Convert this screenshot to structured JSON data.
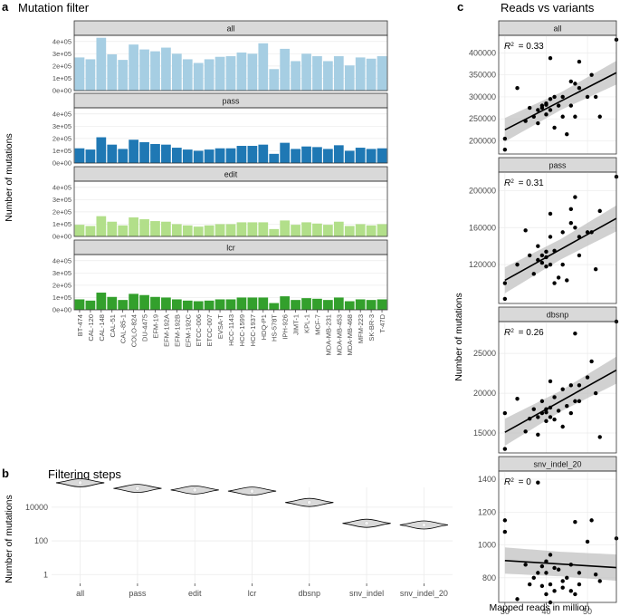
{
  "panels": {
    "a": {
      "label": "a",
      "title": "Mutation filter",
      "ylabel": "Number of mutations"
    },
    "b": {
      "label": "b",
      "title": "Filtering steps",
      "ylabel": "Number of mutations"
    },
    "c": {
      "label": "c",
      "title": "Reads vs variants",
      "ylabel": "Number of mutations",
      "xlabel": "Mapped reads in million"
    }
  },
  "colors": {
    "all": "#a6cee3",
    "pass": "#1f78b4",
    "edit": "#b2df8a",
    "lcr": "#33a02c",
    "strip": "#d9d9d9",
    "grid": "#ebebeb",
    "violin_fill": "#d9d9d9",
    "ribbon": "#bdbdbd"
  },
  "chart_data": [
    {
      "id": "mutation_filter",
      "type": "bar",
      "title": "Mutation filter",
      "ylabel": "Number of mutations",
      "ylim": [
        0,
        450000
      ],
      "yticks": [
        0,
        100000,
        200000,
        300000,
        400000
      ],
      "ytick_labels": [
        "0e+00",
        "1e+05",
        "2e+05",
        "3e+05",
        "4e+05"
      ],
      "categories": [
        "BT-474",
        "CAL-120",
        "CAL-148",
        "CAL-51",
        "CAL-85-1",
        "COLO-824",
        "DU-4475",
        "EFM-19",
        "EFM-192A",
        "EFM-192B",
        "EFM-192C",
        "ETCC-006",
        "ETCC-007",
        "EVSA-T",
        "HCC-1143",
        "HCC-1599",
        "HCC-1937",
        "HDQ-P1",
        "HS-578T",
        "IPH-926",
        "JIMT-1",
        "KPL-1",
        "MCF-7",
        "MDA-MB-231",
        "MDA-MB-453",
        "MDA-MB-468",
        "MFM-223",
        "SK-BR-3",
        "T-47D"
      ],
      "series": [
        {
          "name": "all",
          "values": [
            270000,
            255000,
            430000,
            295000,
            250000,
            375000,
            335000,
            320000,
            350000,
            300000,
            255000,
            225000,
            255000,
            275000,
            280000,
            310000,
            300000,
            385000,
            175000,
            340000,
            240000,
            300000,
            280000,
            240000,
            280000,
            205000,
            270000,
            260000,
            280000
          ]
        },
        {
          "name": "pass",
          "values": [
            120000,
            110000,
            210000,
            150000,
            115000,
            190000,
            170000,
            155000,
            150000,
            125000,
            110000,
            100000,
            110000,
            120000,
            120000,
            140000,
            140000,
            150000,
            75000,
            165000,
            115000,
            135000,
            130000,
            115000,
            145000,
            100000,
            125000,
            115000,
            120000
          ]
        },
        {
          "name": "edit",
          "values": [
            95000,
            85000,
            165000,
            120000,
            90000,
            155000,
            140000,
            125000,
            120000,
            100000,
            90000,
            80000,
            90000,
            100000,
            100000,
            115000,
            115000,
            115000,
            60000,
            130000,
            95000,
            115000,
            105000,
            95000,
            120000,
            85000,
            100000,
            90000,
            100000
          ]
        },
        {
          "name": "lcr",
          "values": [
            85000,
            75000,
            140000,
            105000,
            80000,
            130000,
            120000,
            105000,
            100000,
            85000,
            75000,
            70000,
            75000,
            85000,
            85000,
            100000,
            100000,
            100000,
            55000,
            110000,
            80000,
            95000,
            90000,
            80000,
            100000,
            70000,
            85000,
            80000,
            85000
          ]
        }
      ]
    },
    {
      "id": "filtering_steps",
      "type": "violin",
      "title": "Filtering steps",
      "ylabel": "Number of mutations",
      "yscale": "log10",
      "ylim": [
        0.3,
        150000
      ],
      "yticks": [
        1,
        100,
        10000
      ],
      "ytick_labels": [
        "1",
        "100",
        "10000"
      ],
      "categories": [
        "all",
        "pass",
        "edit",
        "lcr",
        "dbsnp",
        "snv_indel",
        "snv_indel_20"
      ],
      "medians": [
        280000,
        130000,
        105000,
        90000,
        19000,
        1100,
        880
      ]
    },
    {
      "id": "reads_vs_variants",
      "type": "scatter",
      "title": "Reads vs variants",
      "xlabel": "Mapped reads in million",
      "ylabel": "Number of mutations",
      "xlim": [
        28.5,
        57
      ],
      "xticks": [
        30,
        40,
        50
      ],
      "x": [
        30,
        30,
        33,
        35,
        36,
        37,
        38,
        38,
        39,
        39,
        40,
        40,
        40,
        41,
        41,
        41,
        42,
        42,
        43,
        44,
        44,
        45,
        46,
        46,
        47,
        47,
        48,
        48,
        50,
        51,
        52,
        53,
        57
      ],
      "facets": [
        {
          "name": "all",
          "r2_label": "= 0.33",
          "ylim": [
            170000,
            440000
          ],
          "yticks": [
            200000,
            250000,
            300000,
            350000,
            400000
          ],
          "ytick_labels": [
            "200000",
            "250000",
            "300000",
            "350000",
            "400000"
          ],
          "fit": [
            225000,
            355000
          ],
          "band": [
            20000,
            27000
          ],
          "y": [
            180000,
            205000,
            320000,
            245000,
            275000,
            255000,
            270000,
            240000,
            275000,
            280000,
            282000,
            285000,
            260000,
            295000,
            270000,
            388000,
            300000,
            230000,
            280000,
            255000,
            300000,
            215000,
            335000,
            280000,
            255000,
            330000,
            380000,
            320000,
            300000,
            350000,
            300000,
            255000,
            430000
          ]
        },
        {
          "name": "pass",
          "r2_label": "= 0.31",
          "ylim": [
            78000,
            220000
          ],
          "yticks": [
            120000,
            160000,
            200000
          ],
          "ytick_labels": [
            "120000",
            "160000",
            "200000"
          ],
          "fit": [
            103000,
            170000
          ],
          "band": [
            11000,
            14000
          ],
          "y": [
            83000,
            100000,
            120000,
            157000,
            130000,
            110000,
            140000,
            125000,
            122000,
            130000,
            118000,
            128000,
            134000,
            175000,
            120000,
            150000,
            100000,
            135000,
            106000,
            120000,
            155000,
            103000,
            180000,
            165000,
            160000,
            193000,
            150000,
            130000,
            155000,
            155000,
            115000,
            178000,
            215000
          ]
        },
        {
          "name": "dbsnp",
          "r2_label": "= 0.26",
          "ylim": [
            12500,
            29000
          ],
          "yticks": [
            15000,
            20000,
            25000
          ],
          "ytick_labels": [
            "15000",
            "20000",
            "25000"
          ],
          "fit": [
            15100,
            22900
          ],
          "band": [
            1300,
            1700
          ],
          "y": [
            13000,
            17500,
            19300,
            15200,
            16800,
            18000,
            17000,
            14800,
            17500,
            19000,
            16500,
            17600,
            18000,
            21500,
            17000,
            18200,
            19500,
            16700,
            17800,
            20500,
            15800,
            18400,
            21000,
            17500,
            19000,
            27500,
            21000,
            19000,
            22000,
            24000,
            20000,
            14500,
            29000
          ]
        },
        {
          "name": "snv_indel_20",
          "r2_label": "= 0",
          "ylim": [
            650,
            1450
          ],
          "yticks": [
            800,
            1000,
            1200,
            1400
          ],
          "ytick_labels": [
            "800",
            "1000",
            "1200",
            "1400"
          ],
          "fit": [
            905,
            862
          ],
          "band": [
            75,
            80
          ],
          "y": [
            1150,
            1080,
            670,
            880,
            760,
            800,
            830,
            1380,
            870,
            750,
            900,
            830,
            700,
            650,
            940,
            760,
            720,
            860,
            850,
            780,
            740,
            800,
            880,
            720,
            1140,
            700,
            760,
            830,
            1020,
            1150,
            820,
            780,
            1040
          ]
        }
      ]
    }
  ]
}
